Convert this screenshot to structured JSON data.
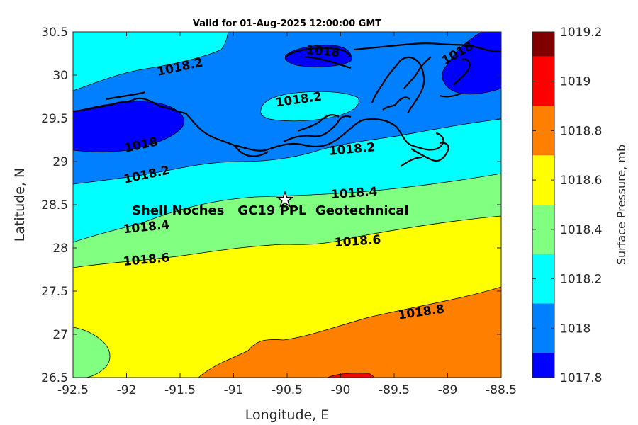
{
  "chart_data": {
    "type": "contour-map",
    "title": "Valid for 01-Aug-2025 12:00:00 GMT",
    "xlabel": "Longitude, E",
    "ylabel": "Latitude, N",
    "xlim": [
      -92.5,
      -88.5
    ],
    "ylim": [
      26.5,
      30.5
    ],
    "x_ticks": [
      "-92.5",
      "-92",
      "-91.5",
      "-91",
      "-90.5",
      "-90",
      "-89.5",
      "-89",
      "-88.5"
    ],
    "y_ticks": [
      "30.5",
      "30",
      "29.5",
      "29",
      "28.5",
      "28",
      "27.5",
      "27",
      "26.5"
    ],
    "colorbar": {
      "label": "Surface Pressure, mb",
      "ticks": [
        "1019.2",
        "1019",
        "1018.8",
        "1018.6",
        "1018.4",
        "1018.2",
        "1018",
        "1017.8"
      ],
      "levels": [
        {
          "from": 1017.8,
          "to": 1017.9,
          "color": "#0000ff"
        },
        {
          "from": 1017.9,
          "to": 1018.1,
          "color": "#0080ff"
        },
        {
          "from": 1018.1,
          "to": 1018.3,
          "color": "#00ffff"
        },
        {
          "from": 1018.3,
          "to": 1018.5,
          "color": "#80ff80"
        },
        {
          "from": 1018.5,
          "to": 1018.7,
          "color": "#ffff00"
        },
        {
          "from": 1018.7,
          "to": 1018.9,
          "color": "#ff8000"
        },
        {
          "from": 1018.9,
          "to": 1019.1,
          "color": "#ff0000"
        },
        {
          "from": 1019.1,
          "to": 1019.2,
          "color": "#800000"
        }
      ]
    },
    "contour_labels": [
      {
        "text": "1018.2",
        "lon": -91.85,
        "lat": 30.03,
        "angle": -12
      },
      {
        "text": "1018",
        "lon": -90.4,
        "lat": 30.25,
        "angle": 5
      },
      {
        "text": "1018",
        "lon": -88.95,
        "lat": 30.22,
        "angle": -30
      },
      {
        "text": "1018.2",
        "lon": -90.35,
        "lat": 29.67,
        "angle": -8
      },
      {
        "text": "1018",
        "lon": -92.0,
        "lat": 29.15,
        "angle": -12
      },
      {
        "text": "1018.2",
        "lon": -89.9,
        "lat": 29.1,
        "angle": -5
      },
      {
        "text": "1018.2",
        "lon": -91.95,
        "lat": 28.84,
        "angle": -12
      },
      {
        "text": "1018.4",
        "lon": -89.9,
        "lat": 28.58,
        "angle": -4
      },
      {
        "text": "1018.4",
        "lon": -92.15,
        "lat": 28.2,
        "angle": -6
      },
      {
        "text": "1018.6",
        "lon": -89.75,
        "lat": 28.05,
        "angle": -4
      },
      {
        "text": "1018.6",
        "lon": -92.05,
        "lat": 27.85,
        "angle": -5
      },
      {
        "text": "1018.8",
        "lon": -89.25,
        "lat": 27.19,
        "angle": -8
      }
    ],
    "site": {
      "name": "Shell Noches   GC19 PPL  Geotechnical",
      "lon": -90.53,
      "lat": 28.57,
      "marker": "star"
    }
  }
}
